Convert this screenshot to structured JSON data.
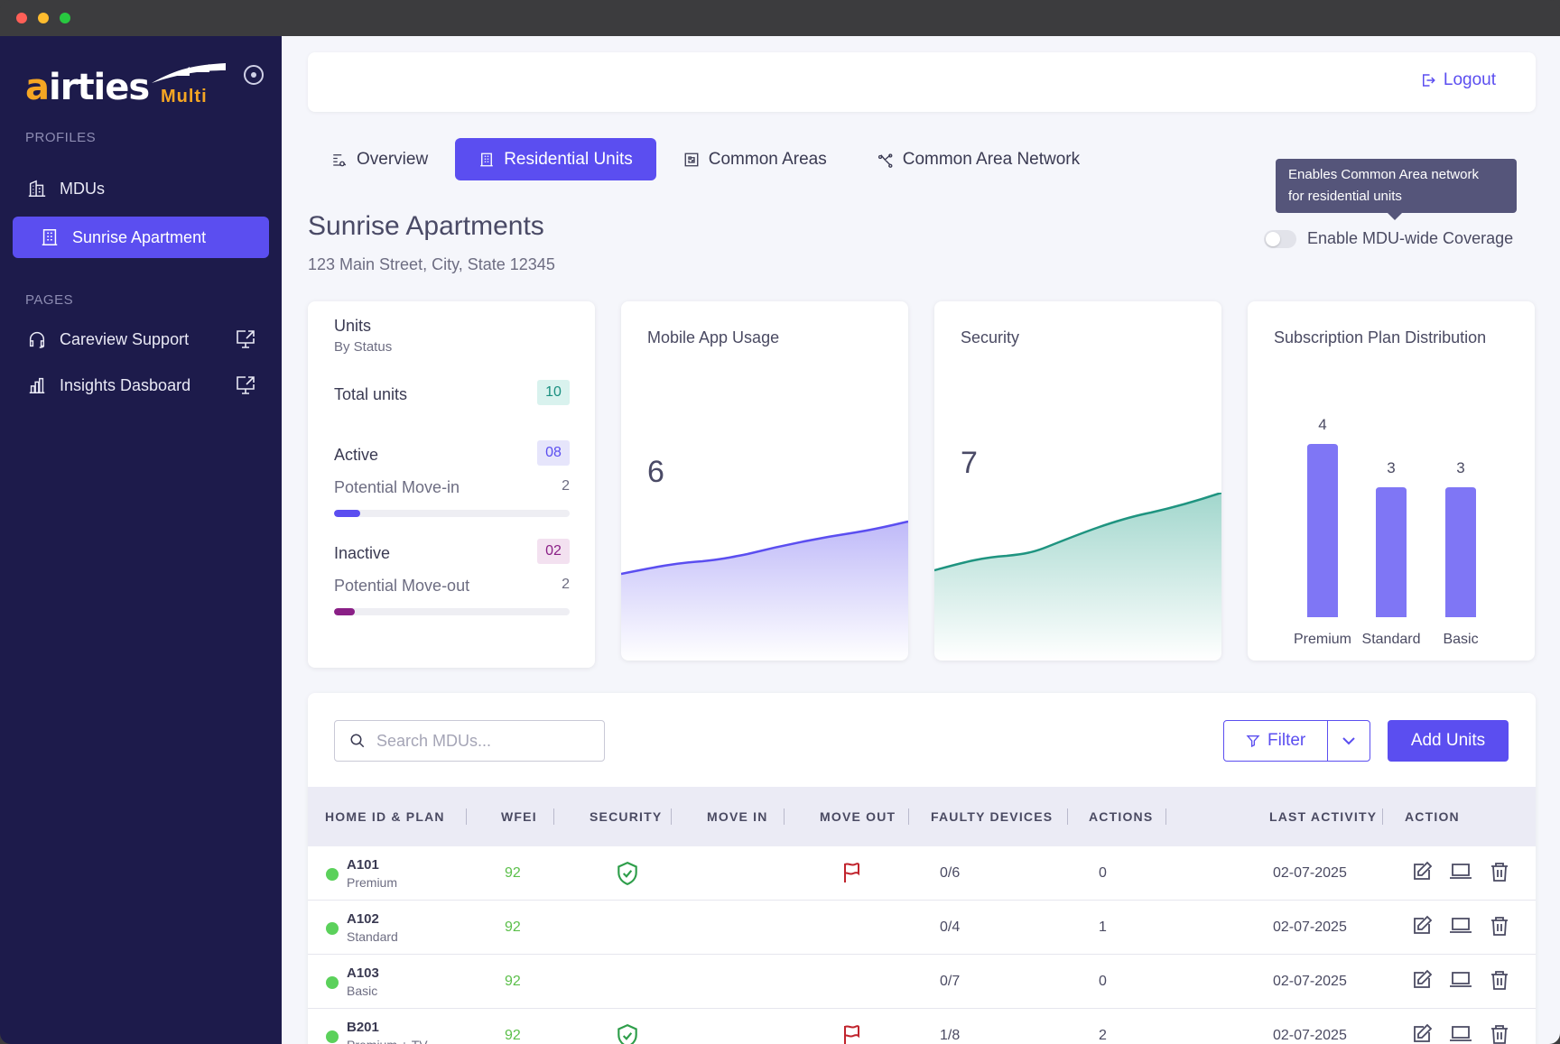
{
  "colors": {
    "accent": "#5b4ef0",
    "sidebar_bg": "#1d1b4b",
    "status_online": "#5bd15b",
    "security_green": "#2e9e4a",
    "flag_red": "#c0232c"
  },
  "sidebar": {
    "profiles_label": "PROFILES",
    "pages_label": "PAGES",
    "items": [
      {
        "label": "MDUs",
        "icon": "building-icon"
      },
      {
        "label": "Sunrise Apartment",
        "icon": "apartment-icon"
      },
      {
        "label": "Careview Support",
        "icon": "headset-icon"
      },
      {
        "label": "Insights Dasboard",
        "icon": "bar-chart-icon"
      }
    ],
    "logo": {
      "word": "airties",
      "sub": "Multi"
    }
  },
  "header": {
    "logout_label": "Logout"
  },
  "tabs": [
    {
      "label": "Overview",
      "icon": "overview-icon"
    },
    {
      "label": "Residential Units",
      "icon": "residential-icon"
    },
    {
      "label": "Common Areas",
      "icon": "common-areas-icon"
    },
    {
      "label": "Common Area Network",
      "icon": "network-icon"
    }
  ],
  "tooltip": {
    "line1": "Enables Common Area network",
    "line2": "for residential units"
  },
  "coverage": {
    "label": "Enable MDU-wide Coverage",
    "enabled": false
  },
  "page": {
    "title": "Sunrise Apartments",
    "address": "123 Main Street, City, State 12345"
  },
  "units_card": {
    "title": "Units",
    "subtitle": "By Status",
    "total_label": "Total units",
    "total_value": "10",
    "active_label": "Active",
    "active_value": "08",
    "move_in_label": "Potential Move-in",
    "move_in_value": "2",
    "move_in_fraction": 0.11,
    "inactive_label": "Inactive",
    "inactive_value": "02",
    "move_out_label": "Potential Move-out",
    "move_out_value": "2",
    "move_out_fraction": 0.09
  },
  "mobile_card": {
    "title": "Mobile App Usage",
    "value": "6"
  },
  "security_card": {
    "title": "Security",
    "value": "7"
  },
  "chart_data": {
    "type": "bar",
    "title": "Subscription Plan Distribution",
    "categories": [
      "Premium",
      "Standard",
      "Basic"
    ],
    "values": [
      4,
      3,
      3
    ],
    "ylim": [
      0,
      4
    ]
  },
  "table": {
    "search_placeholder": "Search MDUs...",
    "filter_label": "Filter",
    "add_label": "Add Units",
    "headers": [
      "HOME ID & PLAN",
      "WFEI",
      "SECURITY",
      "MOVE IN",
      "MOVE OUT",
      "FAULTY DEVICES",
      "ACTIONS",
      "LAST ACTIVITY",
      "ACTION"
    ],
    "rows": [
      {
        "id": "A101",
        "plan": "Premium",
        "wfei": "92",
        "security": true,
        "move_out_flag": true,
        "faulty": "0/6",
        "actions": "0",
        "last": "02-07-2025"
      },
      {
        "id": "A102",
        "plan": "Standard",
        "wfei": "92",
        "security": false,
        "move_out_flag": false,
        "faulty": "0/4",
        "actions": "1",
        "last": "02-07-2025"
      },
      {
        "id": "A103",
        "plan": "Basic",
        "wfei": "92",
        "security": false,
        "move_out_flag": false,
        "faulty": "0/7",
        "actions": "0",
        "last": "02-07-2025"
      },
      {
        "id": "B201",
        "plan": "Premium + TV",
        "wfei": "92",
        "security": true,
        "move_out_flag": true,
        "faulty": "1/8",
        "actions": "2",
        "last": "02-07-2025"
      }
    ]
  }
}
